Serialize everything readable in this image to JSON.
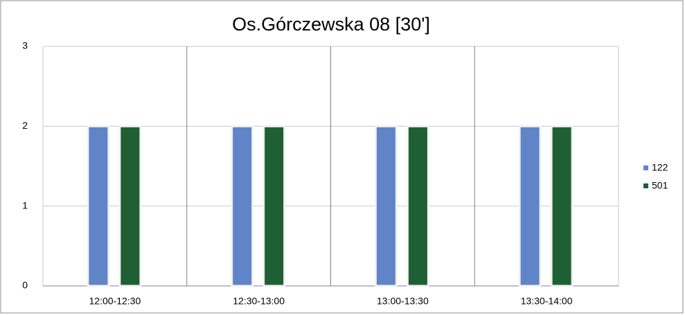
{
  "chart_data": {
    "type": "bar",
    "title": "Os.Górczewska 08 [30']",
    "categories": [
      "12:00-12:30",
      "12:30-13:00",
      "13:00-13:30",
      "13:30-14:00"
    ],
    "series": [
      {
        "name": "122",
        "color": "#5f84c8",
        "values": [
          2,
          2,
          2,
          2
        ]
      },
      {
        "name": "501",
        "color": "#1f5f34",
        "values": [
          2,
          2,
          2,
          2
        ]
      }
    ],
    "ylim": [
      0,
      3
    ],
    "yticks": [
      0,
      1,
      2,
      3
    ],
    "grid": true,
    "legend": "right"
  }
}
